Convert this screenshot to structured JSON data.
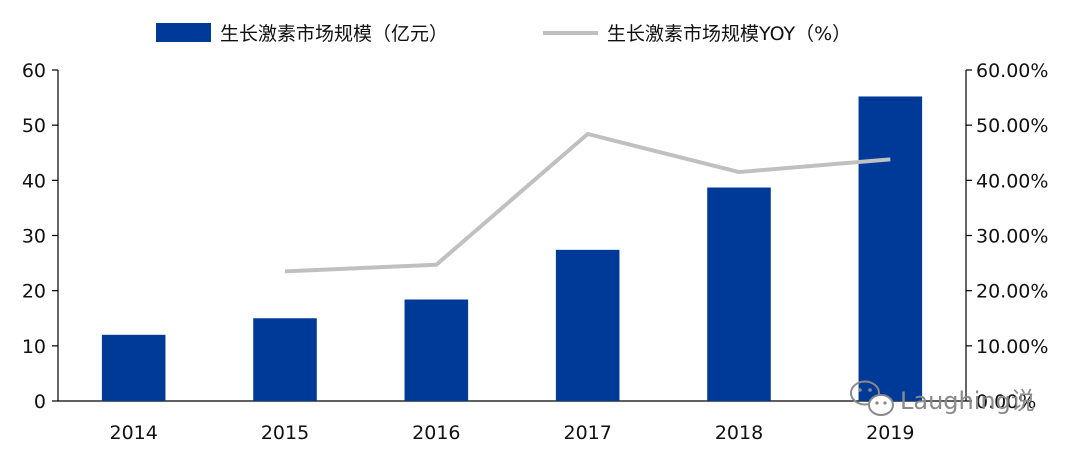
{
  "chart_data": {
    "type": "bar",
    "categories": [
      "2014",
      "2015",
      "2016",
      "2017",
      "2018",
      "2019"
    ],
    "series": [
      {
        "name": "生长激素市场规模（亿元）",
        "type": "bar",
        "axis": "left",
        "color": "#003a99",
        "values": [
          12.0,
          15.0,
          18.4,
          27.4,
          38.7,
          55.2
        ]
      },
      {
        "name": "生长激素市场规模YOY（%）",
        "type": "line",
        "axis": "right",
        "color": "#c0c0c0",
        "values": [
          null,
          23.5,
          24.7,
          48.4,
          41.5,
          43.8
        ]
      }
    ],
    "y_left": {
      "min": 0,
      "max": 60,
      "ticks": [
        "0",
        "10",
        "20",
        "30",
        "40",
        "50",
        "60"
      ]
    },
    "y_right": {
      "min": 0,
      "max": 60,
      "ticks": [
        "0.00%",
        "10.00%",
        "20.00%",
        "30.00%",
        "40.00%",
        "50.00%",
        "60.00%"
      ]
    },
    "grid": false,
    "legend_position": "top"
  },
  "watermark": {
    "text": "Laughing说",
    "icon": "wechat-icon"
  }
}
